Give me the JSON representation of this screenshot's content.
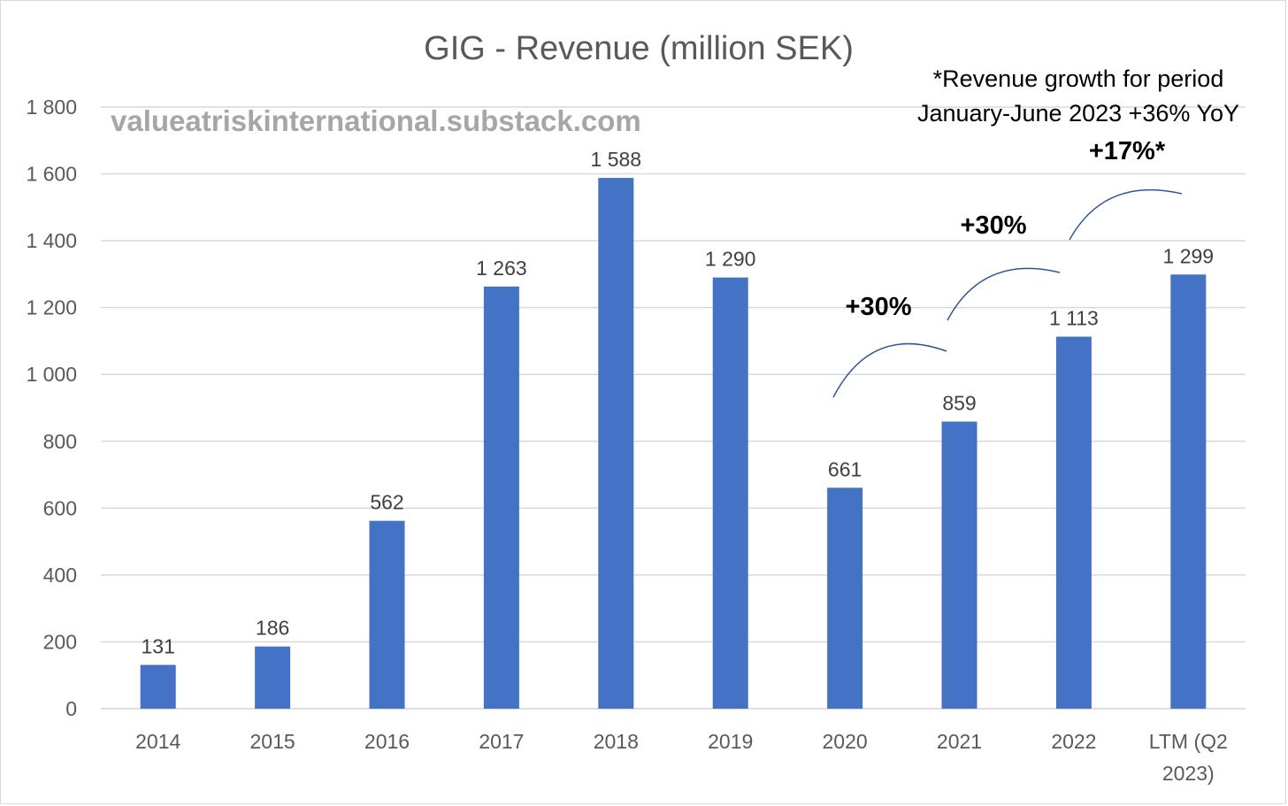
{
  "chart_data": {
    "type": "bar",
    "title": "GIG - Revenue (million SEK)",
    "watermark": "valueatriskinternational.substack.com",
    "categories": [
      "2014",
      "2015",
      "2016",
      "2017",
      "2018",
      "2019",
      "2020",
      "2021",
      "2022",
      "LTM (Q2 2023)"
    ],
    "category_lines": [
      [
        "2014"
      ],
      [
        "2015"
      ],
      [
        "2016"
      ],
      [
        "2017"
      ],
      [
        "2018"
      ],
      [
        "2019"
      ],
      [
        "2020"
      ],
      [
        "2021"
      ],
      [
        "2022"
      ],
      [
        "LTM (Q2",
        "2023)"
      ]
    ],
    "values": [
      131,
      186,
      562,
      1263,
      1588,
      1290,
      661,
      859,
      1113,
      1299
    ],
    "data_labels": [
      "131",
      "186",
      "562",
      "1 263",
      "1 588",
      "1 290",
      "661",
      "859",
      "1 113",
      "1 299"
    ],
    "ylim": [
      0,
      1800
    ],
    "yticks": [
      0,
      200,
      400,
      600,
      800,
      1000,
      1200,
      1400,
      1600,
      1800
    ],
    "ytick_labels": [
      "0",
      "200",
      "400",
      "600",
      "800",
      "1 000",
      "1 200",
      "1 400",
      "1 600",
      "1 800"
    ],
    "grid": true,
    "bar_color": "#4472c4",
    "annotations": {
      "note_line1": "*Revenue growth for period",
      "note_line2": "January-June 2023 +36% YoY",
      "growth": [
        {
          "label": "+30%",
          "from": "2020",
          "to": "2021"
        },
        {
          "label": "+30%",
          "from": "2021",
          "to": "2022"
        },
        {
          "label": "+17%*",
          "from": "2022",
          "to": "LTM (Q2 2023)"
        }
      ]
    }
  }
}
